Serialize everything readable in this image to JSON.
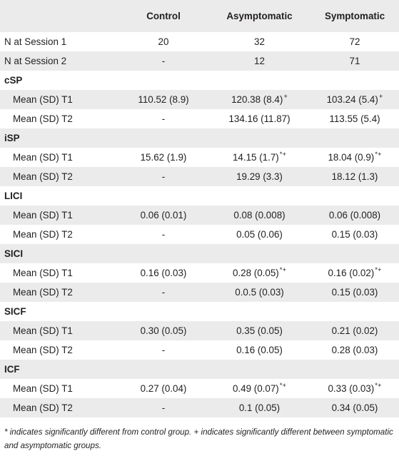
{
  "table": {
    "headers": [
      "",
      "Control",
      "Asymptomatic",
      "Symptomatic"
    ],
    "rows": [
      {
        "kind": "data",
        "label": "N at Session 1",
        "indent": false,
        "shade": false,
        "cells": [
          {
            "v": "20",
            "s": ""
          },
          {
            "v": "32",
            "s": ""
          },
          {
            "v": "72",
            "s": ""
          }
        ]
      },
      {
        "kind": "data",
        "label": "N at Session 2",
        "indent": false,
        "shade": true,
        "cells": [
          {
            "v": "-",
            "s": ""
          },
          {
            "v": "12",
            "s": ""
          },
          {
            "v": "71",
            "s": ""
          }
        ]
      },
      {
        "kind": "section",
        "label": "cSP",
        "shade": false
      },
      {
        "kind": "data",
        "label": "Mean (SD) T1",
        "indent": true,
        "shade": true,
        "cells": [
          {
            "v": "110.52 (8.9)",
            "s": ""
          },
          {
            "v": "120.38 (8.4)",
            "s": "+"
          },
          {
            "v": "103.24 (5.4)",
            "s": "+"
          }
        ]
      },
      {
        "kind": "data",
        "label": "Mean (SD) T2",
        "indent": true,
        "shade": false,
        "cells": [
          {
            "v": "-",
            "s": ""
          },
          {
            "v": "134.16 (11.87)",
            "s": ""
          },
          {
            "v": "113.55 (5.4)",
            "s": ""
          }
        ]
      },
      {
        "kind": "section",
        "label": "iSP",
        "shade": true
      },
      {
        "kind": "data",
        "label": "Mean (SD) T1",
        "indent": true,
        "shade": false,
        "cells": [
          {
            "v": "15.62 (1.9)",
            "s": ""
          },
          {
            "v": "14.15 (1.7)",
            "s": "*+"
          },
          {
            "v": "18.04 (0.9)",
            "s": "*+"
          }
        ]
      },
      {
        "kind": "data",
        "label": "Mean (SD) T2",
        "indent": true,
        "shade": true,
        "cells": [
          {
            "v": "-",
            "s": ""
          },
          {
            "v": "19.29 (3.3)",
            "s": ""
          },
          {
            "v": "18.12 (1.3)",
            "s": ""
          }
        ]
      },
      {
        "kind": "section",
        "label": "LICI",
        "shade": false
      },
      {
        "kind": "data",
        "label": "Mean (SD) T1",
        "indent": true,
        "shade": true,
        "cells": [
          {
            "v": "0.06 (0.01)",
            "s": ""
          },
          {
            "v": "0.08 (0.008)",
            "s": ""
          },
          {
            "v": "0.06 (0.008)",
            "s": ""
          }
        ]
      },
      {
        "kind": "data",
        "label": "Mean (SD) T2",
        "indent": true,
        "shade": false,
        "cells": [
          {
            "v": "-",
            "s": ""
          },
          {
            "v": "0.05 (0.06)",
            "s": ""
          },
          {
            "v": "0.15 (0.03)",
            "s": ""
          }
        ]
      },
      {
        "kind": "section",
        "label": "SICI",
        "shade": true
      },
      {
        "kind": "data",
        "label": "Mean (SD) T1",
        "indent": true,
        "shade": false,
        "cells": [
          {
            "v": "0.16 (0.03)",
            "s": ""
          },
          {
            "v": "0.28 (0.05)",
            "s": "*+"
          },
          {
            "v": "0.16 (0.02)",
            "s": "*+"
          }
        ]
      },
      {
        "kind": "data",
        "label": "Mean (SD) T2",
        "indent": true,
        "shade": true,
        "cells": [
          {
            "v": "-",
            "s": ""
          },
          {
            "v": "0.0.5 (0.03)",
            "s": ""
          },
          {
            "v": "0.15 (0.03)",
            "s": ""
          }
        ]
      },
      {
        "kind": "section",
        "label": "SICF",
        "shade": false
      },
      {
        "kind": "data",
        "label": "Mean (SD) T1",
        "indent": true,
        "shade": true,
        "cells": [
          {
            "v": "0.30 (0.05)",
            "s": ""
          },
          {
            "v": "0.35 (0.05)",
            "s": ""
          },
          {
            "v": "0.21 (0.02)",
            "s": ""
          }
        ]
      },
      {
        "kind": "data",
        "label": "Mean (SD) T2",
        "indent": true,
        "shade": false,
        "cells": [
          {
            "v": "-",
            "s": ""
          },
          {
            "v": "0.16 (0.05)",
            "s": ""
          },
          {
            "v": "0.28 (0.03)",
            "s": ""
          }
        ]
      },
      {
        "kind": "section",
        "label": "ICF",
        "shade": true
      },
      {
        "kind": "data",
        "label": "Mean (SD) T1",
        "indent": true,
        "shade": false,
        "cells": [
          {
            "v": "0.27 (0.04)",
            "s": ""
          },
          {
            "v": "0.49 (0.07)",
            "s": "*+"
          },
          {
            "v": "0.33 (0.03)",
            "s": "*+"
          }
        ]
      },
      {
        "kind": "data",
        "label": "Mean (SD) T2",
        "indent": true,
        "shade": true,
        "cells": [
          {
            "v": "-",
            "s": ""
          },
          {
            "v": "0.1 (0.05)",
            "s": ""
          },
          {
            "v": "0.34 (0.05)",
            "s": ""
          }
        ]
      }
    ]
  },
  "footnote": "* indicates significantly different from control group. + indicates significantly different between symptomatic and asymptomatic groups."
}
